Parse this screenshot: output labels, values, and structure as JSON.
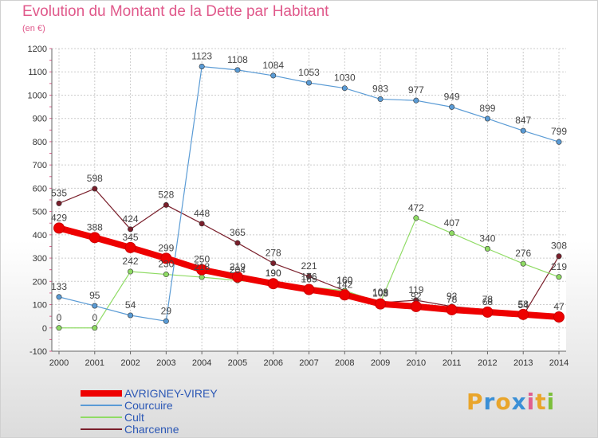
{
  "header": {
    "title": "Evolution du Montant de la Dette par Habitant",
    "subtitle": "(en €)"
  },
  "brand": {
    "letters": [
      "P",
      "r",
      "o",
      "x",
      "i",
      "t",
      "i"
    ],
    "colors": [
      "#e9a52b",
      "#3a8fd6",
      "#e9a52b",
      "#3a8fd6",
      "#e05e8f",
      "#e9a52b",
      "#7cbf3b"
    ]
  },
  "chart_data": {
    "type": "line",
    "title": "Evolution du Montant de la Dette par Habitant",
    "subtitle": "(en €)",
    "xlabel": "",
    "ylabel": "",
    "x": [
      2000,
      2001,
      2002,
      2003,
      2004,
      2005,
      2006,
      2007,
      2008,
      2009,
      2010,
      2011,
      2012,
      2013,
      2014
    ],
    "yticks": [
      -100,
      0,
      100,
      200,
      300,
      400,
      500,
      600,
      700,
      800,
      900,
      1000,
      1100,
      1200
    ],
    "ylim": [
      -100,
      1200
    ],
    "grid": true,
    "legend": "bottom-left",
    "series": [
      {
        "name": "AVRIGNEY-VIREY",
        "color": "#ee0000",
        "values": [
          429,
          388,
          345,
          299,
          250,
          219,
          190,
          165,
          142,
          103,
          92,
          78,
          68,
          58,
          47
        ]
      },
      {
        "name": "Courcuire",
        "color": "#5a9bd5",
        "values": [
          133,
          95,
          54,
          29,
          1123,
          1108,
          1084,
          1053,
          1030,
          983,
          977,
          949,
          899,
          847,
          799
        ]
      },
      {
        "name": "Cult",
        "color": "#8fdb64",
        "values": [
          0,
          0,
          242,
          230,
          218,
          204,
          190,
          176,
          160,
          109,
          472,
          407,
          340,
          276,
          219
        ]
      },
      {
        "name": "Charcenne",
        "color": "#7a1f2b",
        "values": [
          535,
          598,
          424,
          528,
          448,
          365,
          278,
          221,
          160,
          108,
          119,
          92,
          78,
          54,
          308
        ]
      }
    ]
  }
}
